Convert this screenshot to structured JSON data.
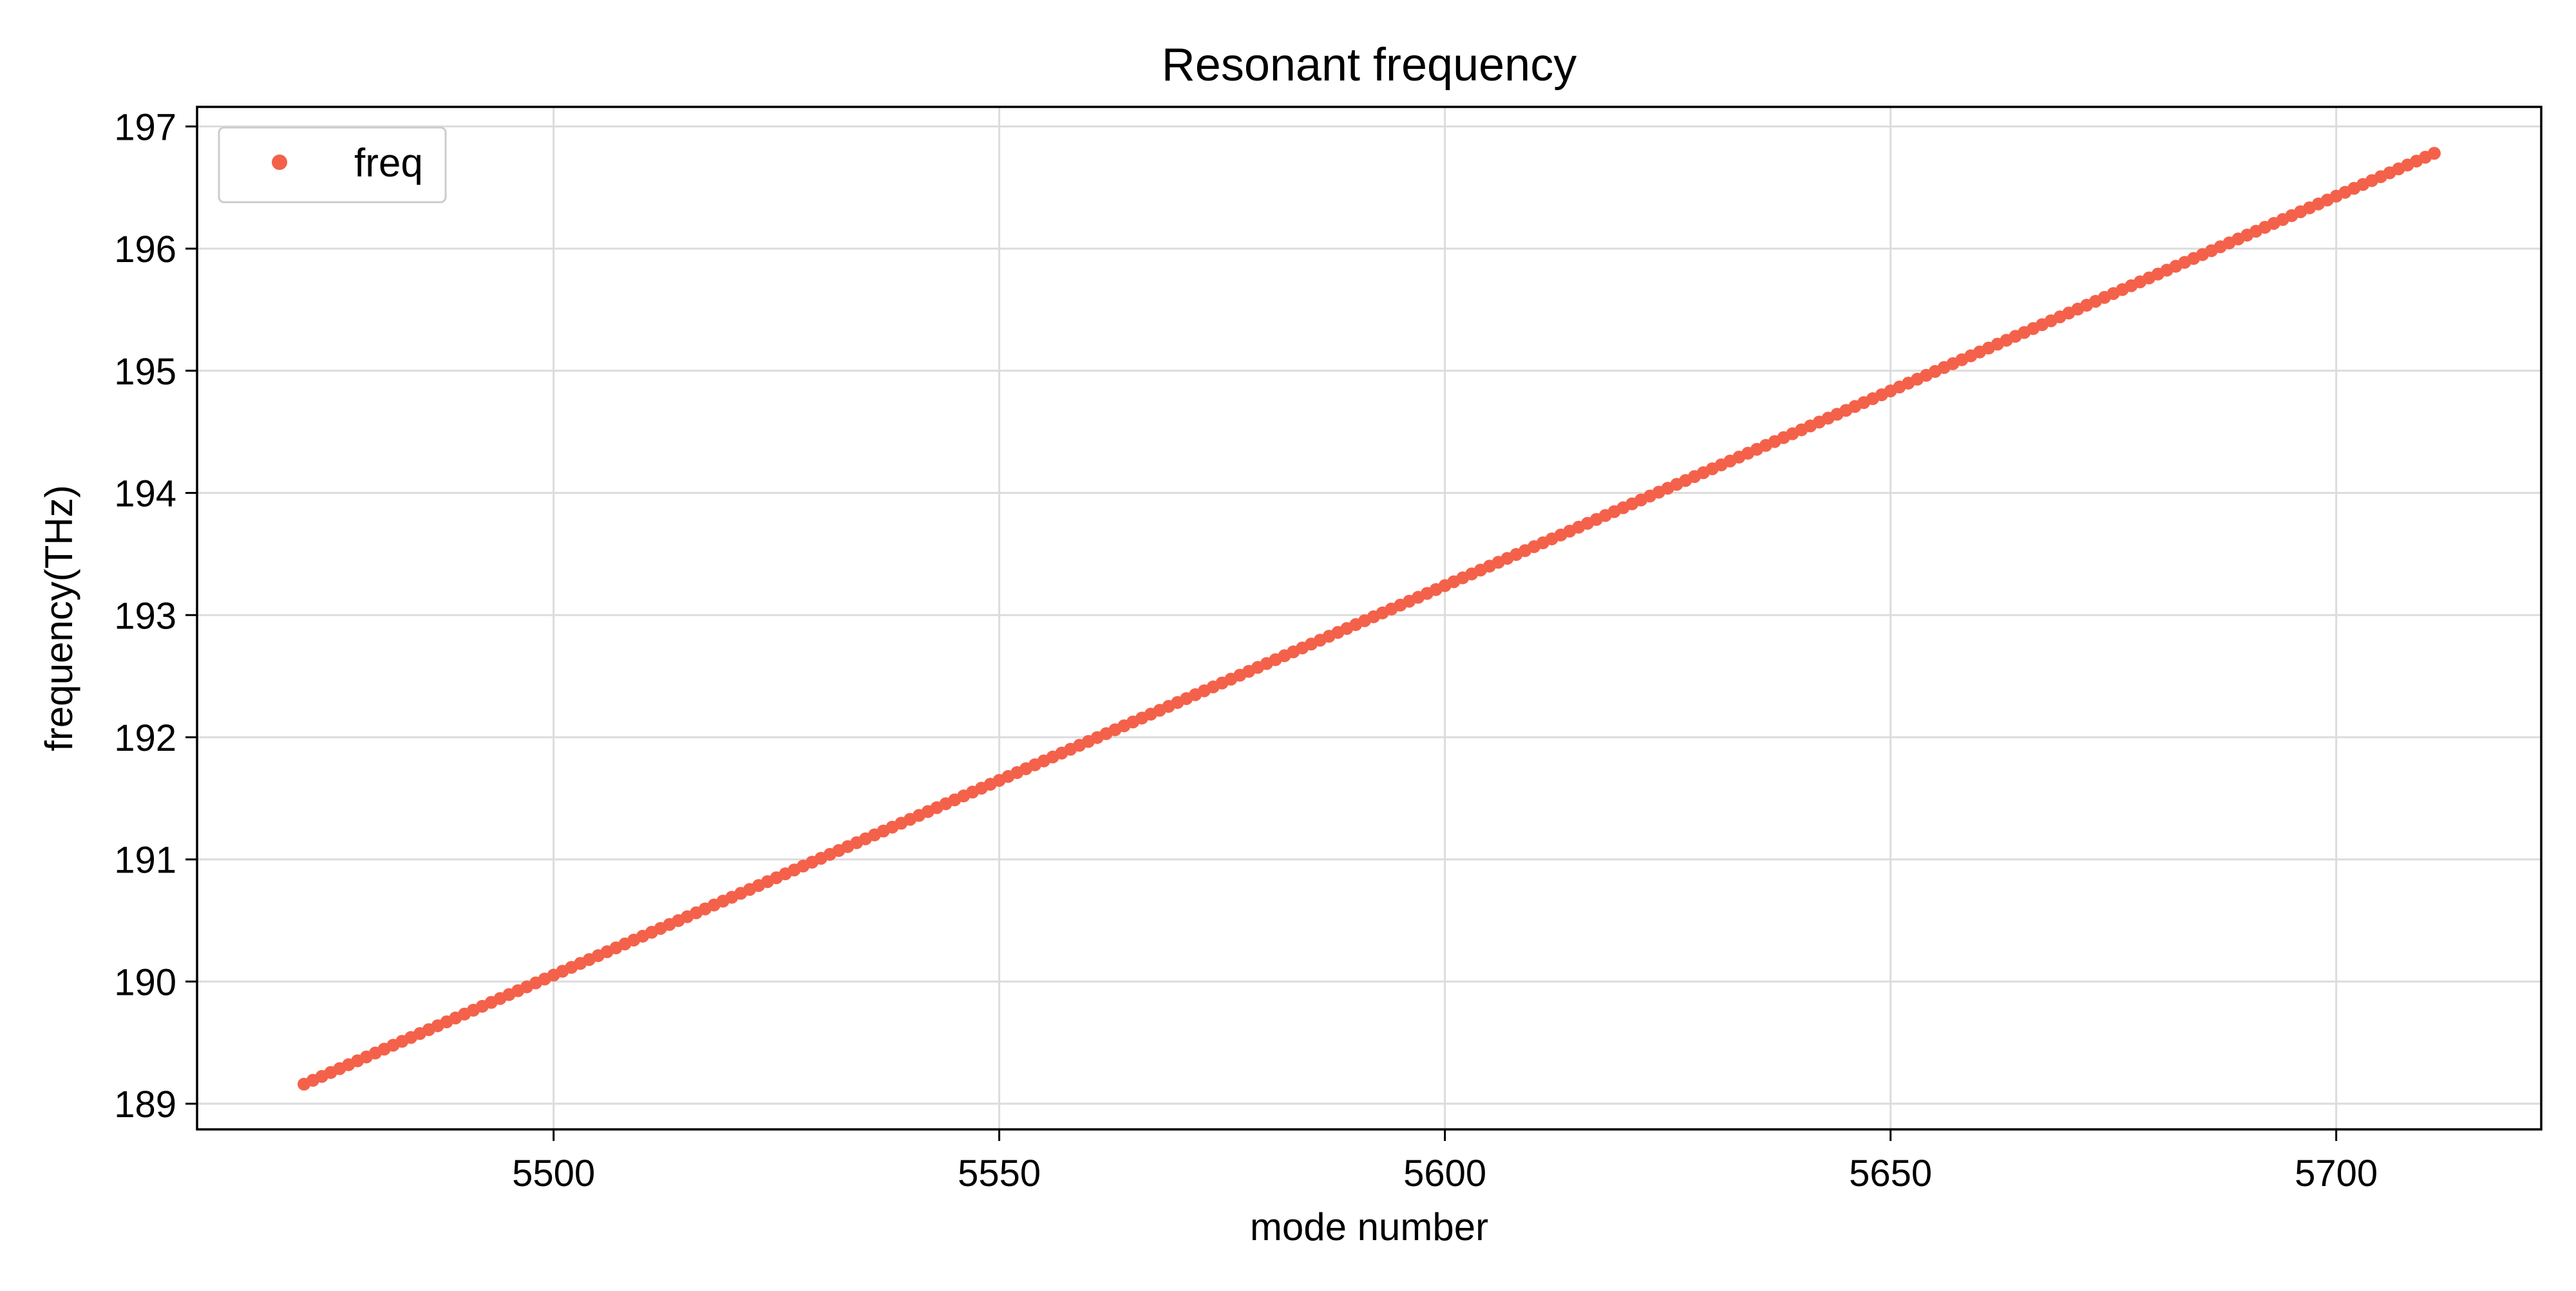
{
  "chart_data": {
    "type": "scatter",
    "title": "Resonant frequency",
    "xlabel": "mode number",
    "ylabel": "frequency(THz)",
    "xlim": [
      5460,
      5723
    ],
    "ylim": [
      188.79,
      197.16
    ],
    "xticks": [
      5500,
      5550,
      5600,
      5650,
      5700
    ],
    "yticks": [
      189,
      190,
      191,
      192,
      193,
      194,
      195,
      196,
      197
    ],
    "grid": true,
    "legend_position": "top-left",
    "series": [
      {
        "name": "freq",
        "color": "#f4614a",
        "marker": "dot",
        "x_start": 5472,
        "x_end": 5711,
        "x_step": 1,
        "y_start": 189.16,
        "y_end": 196.78
      }
    ]
  }
}
